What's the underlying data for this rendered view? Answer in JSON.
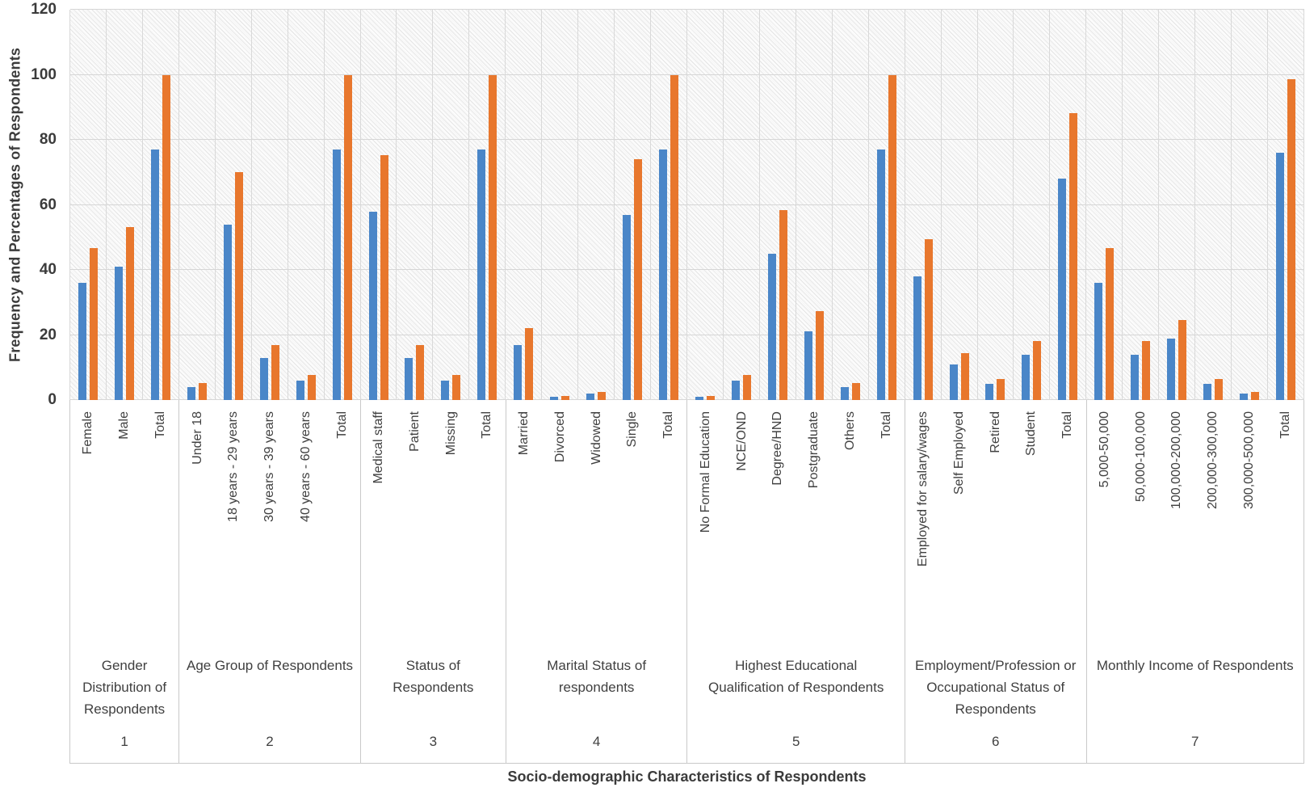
{
  "chart_data": {
    "type": "bar",
    "title": "",
    "ylabel": "Frequency and Percentages of Respondents",
    "xlabel": "Socio-demographic Characteristics of Respondents",
    "ylim": [
      0,
      120
    ],
    "yticks": [
      0,
      20,
      40,
      60,
      80,
      100,
      120
    ],
    "grid": "horizontal and vertical category gridlines, hatched plot background",
    "legend": "none visible",
    "series_names": [
      "Frequency",
      "Percentage"
    ],
    "colors": {
      "frequency_bar": "#4a86c8",
      "percentage_bar": "#e8772d",
      "gridline": "#d9d9d9",
      "text": "#404040"
    },
    "groups": [
      {
        "number": "1",
        "title": "Gender Distribution of Respondents",
        "title_lines": [
          "Gender",
          "Distribution of",
          "Respondents"
        ],
        "categories": [
          {
            "label": "Female",
            "frequency": 36,
            "percentage": 46.8
          },
          {
            "label": "Male",
            "frequency": 41,
            "percentage": 53.2
          },
          {
            "label": "Total",
            "frequency": 77,
            "percentage": 100
          }
        ]
      },
      {
        "number": "2",
        "title": "Age Group of Respondents",
        "title_lines": [
          "Age Group of Respondents"
        ],
        "categories": [
          {
            "label": "Under 18",
            "frequency": 4,
            "percentage": 5.2
          },
          {
            "label": "18 years - 29 years",
            "frequency": 54,
            "percentage": 70.1
          },
          {
            "label": "30 years - 39 years",
            "frequency": 13,
            "percentage": 16.9
          },
          {
            "label": "40 years - 60 years",
            "frequency": 6,
            "percentage": 7.8
          },
          {
            "label": "Total",
            "frequency": 77,
            "percentage": 100
          }
        ]
      },
      {
        "number": "3",
        "title": "Status of Respondents",
        "title_lines": [
          "Status of",
          "Respondents"
        ],
        "categories": [
          {
            "label": "Medical staff",
            "frequency": 58,
            "percentage": 75.3
          },
          {
            "label": "Patient",
            "frequency": 13,
            "percentage": 16.9
          },
          {
            "label": "Missing",
            "frequency": 6,
            "percentage": 7.8
          },
          {
            "label": "Total",
            "frequency": 77,
            "percentage": 100
          }
        ]
      },
      {
        "number": "4",
        "title": "Marital Status of respondents",
        "title_lines": [
          "Marital Status of",
          "respondents"
        ],
        "categories": [
          {
            "label": "Married",
            "frequency": 17,
            "percentage": 22.1
          },
          {
            "label": "Divorced",
            "frequency": 1,
            "percentage": 1.3
          },
          {
            "label": "Widowed",
            "frequency": 2,
            "percentage": 2.6
          },
          {
            "label": "Single",
            "frequency": 57,
            "percentage": 74.0
          },
          {
            "label": "Total",
            "frequency": 77,
            "percentage": 100
          }
        ]
      },
      {
        "number": "5",
        "title": "Highest Educational Qualification of Respondents",
        "title_lines": [
          "Highest Educational",
          "Qualification of Respondents"
        ],
        "categories": [
          {
            "label": "No Formal Education",
            "frequency": 1,
            "percentage": 1.3
          },
          {
            "label": "NCE/OND",
            "frequency": 6,
            "percentage": 7.8
          },
          {
            "label": "Degree/HND",
            "frequency": 45,
            "percentage": 58.4
          },
          {
            "label": "Postgraduate",
            "frequency": 21,
            "percentage": 27.3
          },
          {
            "label": "Others",
            "frequency": 4,
            "percentage": 5.2
          },
          {
            "label": "Total",
            "frequency": 77,
            "percentage": 100
          }
        ]
      },
      {
        "number": "6",
        "title": "Employment/Profession or Occupational Status of Respondents",
        "title_lines": [
          "Employment/Profession or",
          "Occupational Status of",
          "Respondents"
        ],
        "categories": [
          {
            "label": "Employed for salary/wages",
            "frequency": 38,
            "percentage": 49.4
          },
          {
            "label": "Self Employed",
            "frequency": 11,
            "percentage": 14.3
          },
          {
            "label": "Retired",
            "frequency": 5,
            "percentage": 6.5
          },
          {
            "label": "Student",
            "frequency": 14,
            "percentage": 18.2
          },
          {
            "label": "Total",
            "frequency": 68,
            "percentage": 88.3
          }
        ]
      },
      {
        "number": "7",
        "title": "Monthly Income of Respondents",
        "title_lines": [
          "Monthly Income of Respondents"
        ],
        "categories": [
          {
            "label": "5,000-50,000",
            "frequency": 36,
            "percentage": 46.8
          },
          {
            "label": "50,000-100,000",
            "frequency": 14,
            "percentage": 18.2
          },
          {
            "label": "100,000-200,000",
            "frequency": 19,
            "percentage": 24.7
          },
          {
            "label": "200,000-300,000",
            "frequency": 5,
            "percentage": 6.5
          },
          {
            "label": "300,000-500,000",
            "frequency": 2,
            "percentage": 2.6
          },
          {
            "label": "Total",
            "frequency": 76,
            "percentage": 98.7
          }
        ]
      }
    ]
  }
}
